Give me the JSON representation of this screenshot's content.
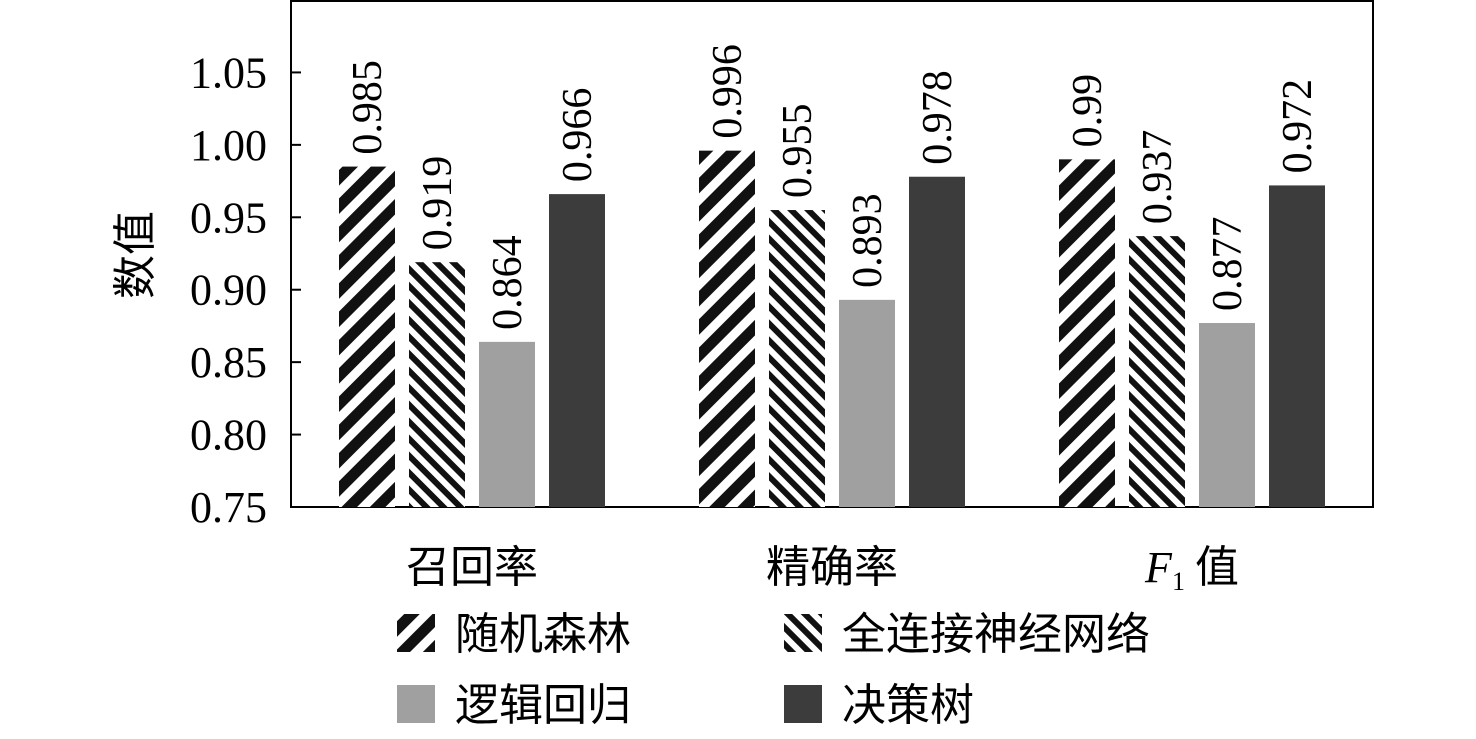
{
  "chart_data": {
    "type": "bar",
    "categories": [
      "召回率",
      "精确率",
      "F1 值"
    ],
    "category_display": [
      {
        "main": "召回率",
        "italic_prefix": "",
        "subscript": "",
        "suffix": ""
      },
      {
        "main": "精确率",
        "italic_prefix": "",
        "subscript": "",
        "suffix": ""
      },
      {
        "main": "",
        "italic_prefix": "F",
        "subscript": "1",
        "suffix": "值"
      }
    ],
    "series": [
      {
        "name": "随机森林",
        "values": [
          0.985,
          0.996,
          0.99
        ],
        "labels": [
          "0.985",
          "0.996",
          "0.99"
        ],
        "fill": "hatch-wide",
        "color": "#111111"
      },
      {
        "name": "全连接神经网络",
        "values": [
          0.919,
          0.955,
          0.937
        ],
        "labels": [
          "0.919",
          "0.955",
          "0.937"
        ],
        "fill": "hatch-narrow",
        "color": "#111111"
      },
      {
        "name": "逻辑回归",
        "values": [
          0.864,
          0.893,
          0.877
        ],
        "labels": [
          "0.864",
          "0.893",
          "0.877"
        ],
        "fill": "solid",
        "color": "#a0a0a0"
      },
      {
        "name": "决策树",
        "values": [
          0.966,
          0.978,
          0.972
        ],
        "labels": [
          "0.966",
          "0.978",
          "0.972"
        ],
        "fill": "solid",
        "color": "#3c3c3c"
      }
    ],
    "ylabel": "数值",
    "xlabel": "",
    "ylim": [
      0.75,
      1.1
    ],
    "yticks": [
      "0.75",
      "0.80",
      "0.85",
      "0.90",
      "0.95",
      "1.00",
      "1.05"
    ],
    "legend_position": "bottom",
    "grid": false
  }
}
